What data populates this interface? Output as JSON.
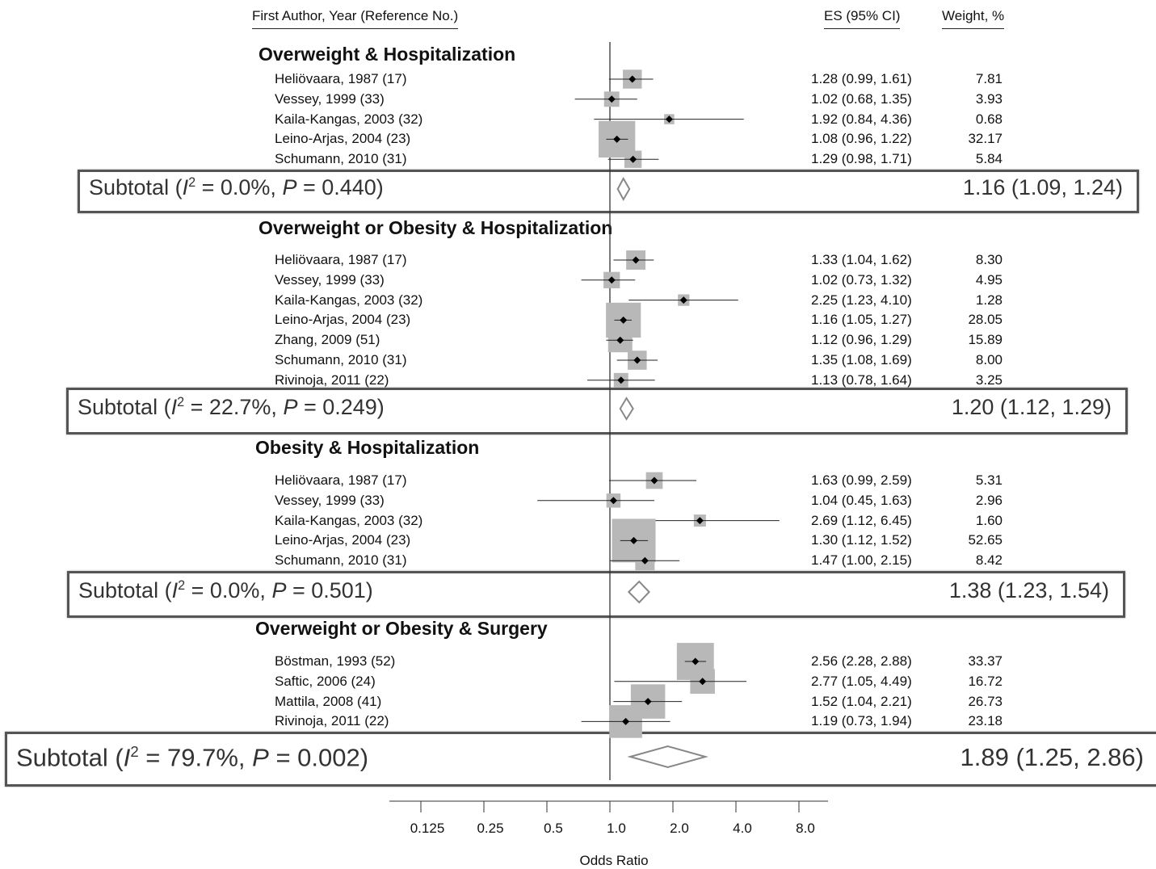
{
  "header": {
    "study_col": "First Author, Year (Reference No.)",
    "es_col": "ES (95% CI)",
    "weight_col": "Weight, %"
  },
  "chart_data": {
    "type": "forest",
    "xlabel": "Odds Ratio",
    "x_scale": "log2",
    "x_ticks": [
      "0.125",
      "0.25",
      "0.5",
      "1.0",
      "2.0",
      "4.0",
      "8.0"
    ],
    "x_tick_values": [
      0.125,
      0.25,
      0.5,
      1.0,
      2.0,
      4.0,
      8.0
    ],
    "reference_line": 1.0,
    "groups": [
      {
        "title": "Overweight & Hospitalization",
        "studies": [
          {
            "label": "Heliövaara, 1987 (17)",
            "es": 1.28,
            "lo": 0.99,
            "hi": 1.61,
            "es_text": "1.28 (0.99, 1.61)",
            "weight": 7.81,
            "weight_text": "7.81"
          },
          {
            "label": "Vessey, 1999 (33)",
            "es": 1.02,
            "lo": 0.68,
            "hi": 1.35,
            "es_text": "1.02 (0.68, 1.35)",
            "weight": 3.93,
            "weight_text": "3.93"
          },
          {
            "label": "Kaila-Kangas, 2003 (32)",
            "es": 1.92,
            "lo": 0.84,
            "hi": 4.36,
            "es_text": "1.92 (0.84, 4.36)",
            "weight": 0.68,
            "weight_text": "0.68"
          },
          {
            "label": "Leino-Arjas, 2004 (23)",
            "es": 1.08,
            "lo": 0.96,
            "hi": 1.22,
            "es_text": "1.08 (0.96, 1.22)",
            "weight": 32.17,
            "weight_text": "32.17"
          },
          {
            "label": "Schumann, 2010 (31)",
            "es": 1.29,
            "lo": 0.98,
            "hi": 1.71,
            "es_text": "1.29 (0.98, 1.71)",
            "weight": 5.84,
            "weight_text": "5.84"
          }
        ],
        "subtotal": {
          "label": "Subtotal (I² = 0.0%, P = 0.440)",
          "i2": "0.0%",
          "p": "0.440",
          "es": 1.16,
          "lo": 1.09,
          "hi": 1.24,
          "es_text": "1.16 (1.09, 1.24)"
        }
      },
      {
        "title": "Overweight or Obesity & Hospitalization",
        "studies": [
          {
            "label": "Heliövaara, 1987 (17)",
            "es": 1.33,
            "lo": 1.04,
            "hi": 1.62,
            "es_text": "1.33 (1.04, 1.62)",
            "weight": 8.3,
            "weight_text": "8.30"
          },
          {
            "label": "Vessey, 1999 (33)",
            "es": 1.02,
            "lo": 0.73,
            "hi": 1.32,
            "es_text": "1.02 (0.73, 1.32)",
            "weight": 4.95,
            "weight_text": "4.95"
          },
          {
            "label": "Kaila-Kangas, 2003 (32)",
            "es": 2.25,
            "lo": 1.23,
            "hi": 4.1,
            "es_text": "2.25 (1.23, 4.10)",
            "weight": 1.28,
            "weight_text": "1.28"
          },
          {
            "label": "Leino-Arjas, 2004 (23)",
            "es": 1.16,
            "lo": 1.05,
            "hi": 1.27,
            "es_text": "1.16 (1.05, 1.27)",
            "weight": 28.05,
            "weight_text": "28.05"
          },
          {
            "label": "Zhang, 2009 (51)",
            "es": 1.12,
            "lo": 0.96,
            "hi": 1.29,
            "es_text": "1.12 (0.96, 1.29)",
            "weight": 15.89,
            "weight_text": "15.89"
          },
          {
            "label": "Schumann, 2010 (31)",
            "es": 1.35,
            "lo": 1.08,
            "hi": 1.69,
            "es_text": "1.35 (1.08, 1.69)",
            "weight": 8.0,
            "weight_text": "8.00"
          },
          {
            "label": "Rivinoja, 2011 (22)",
            "es": 1.13,
            "lo": 0.78,
            "hi": 1.64,
            "es_text": "1.13 (0.78, 1.64)",
            "weight": 3.25,
            "weight_text": "3.25"
          }
        ],
        "subtotal": {
          "label": "Subtotal (I² = 22.7%, P = 0.249)",
          "i2": "22.7%",
          "p": "0.249",
          "es": 1.2,
          "lo": 1.12,
          "hi": 1.29,
          "es_text": "1.20 (1.12, 1.29)"
        }
      },
      {
        "title": "Obesity & Hospitalization",
        "studies": [
          {
            "label": "Heliövaara, 1987 (17)",
            "es": 1.63,
            "lo": 0.99,
            "hi": 2.59,
            "es_text": "1.63 (0.99, 2.59)",
            "weight": 5.31,
            "weight_text": "5.31"
          },
          {
            "label": "Vessey, 1999 (33)",
            "es": 1.04,
            "lo": 0.45,
            "hi": 1.63,
            "es_text": "1.04 (0.45, 1.63)",
            "weight": 2.96,
            "weight_text": "2.96"
          },
          {
            "label": "Kaila-Kangas, 2003 (32)",
            "es": 2.69,
            "lo": 1.12,
            "hi": 6.45,
            "es_text": "2.69 (1.12, 6.45)",
            "weight": 1.6,
            "weight_text": "1.60"
          },
          {
            "label": "Leino-Arjas, 2004 (23)",
            "es": 1.3,
            "lo": 1.12,
            "hi": 1.52,
            "es_text": "1.30 (1.12, 1.52)",
            "weight": 52.65,
            "weight_text": "52.65"
          },
          {
            "label": "Schumann, 2010 (31)",
            "es": 1.47,
            "lo": 1.0,
            "hi": 2.15,
            "es_text": "1.47 (1.00, 2.15)",
            "weight": 8.42,
            "weight_text": "8.42"
          }
        ],
        "subtotal": {
          "label": "Subtotal (I² = 0.0%, P = 0.501)",
          "i2": "0.0%",
          "p": "0.501",
          "es": 1.38,
          "lo": 1.23,
          "hi": 1.54,
          "es_text": "1.38 (1.23, 1.54)"
        }
      },
      {
        "title": "Overweight or Obesity & Surgery",
        "studies": [
          {
            "label": "Böstman, 1993 (52)",
            "es": 2.56,
            "lo": 2.28,
            "hi": 2.88,
            "es_text": "2.56 (2.28, 2.88)",
            "weight": 33.37,
            "weight_text": "33.37"
          },
          {
            "label": "Saftic, 2006 (24)",
            "es": 2.77,
            "lo": 1.05,
            "hi": 4.49,
            "es_text": "2.77 (1.05, 4.49)",
            "weight": 16.72,
            "weight_text": "16.72"
          },
          {
            "label": "Mattila, 2008 (41)",
            "es": 1.52,
            "lo": 1.04,
            "hi": 2.21,
            "es_text": "1.52 (1.04, 2.21)",
            "weight": 26.73,
            "weight_text": "26.73"
          },
          {
            "label": "Rivinoja, 2011 (22)",
            "es": 1.19,
            "lo": 0.73,
            "hi": 1.94,
            "es_text": "1.19 (0.73, 1.94)",
            "weight": 23.18,
            "weight_text": "23.18"
          }
        ],
        "subtotal": {
          "label": "Subtotal (I² = 79.7%, P = 0.002)",
          "i2": "79.7%",
          "p": "0.002",
          "es": 1.89,
          "lo": 1.25,
          "hi": 2.86,
          "es_text": "1.89 (1.25, 2.86)"
        }
      }
    ]
  },
  "colors": {
    "weight_box": "#b8b8b8",
    "ci_line": "#222222",
    "point": "#000000",
    "diamond": "#888888"
  }
}
